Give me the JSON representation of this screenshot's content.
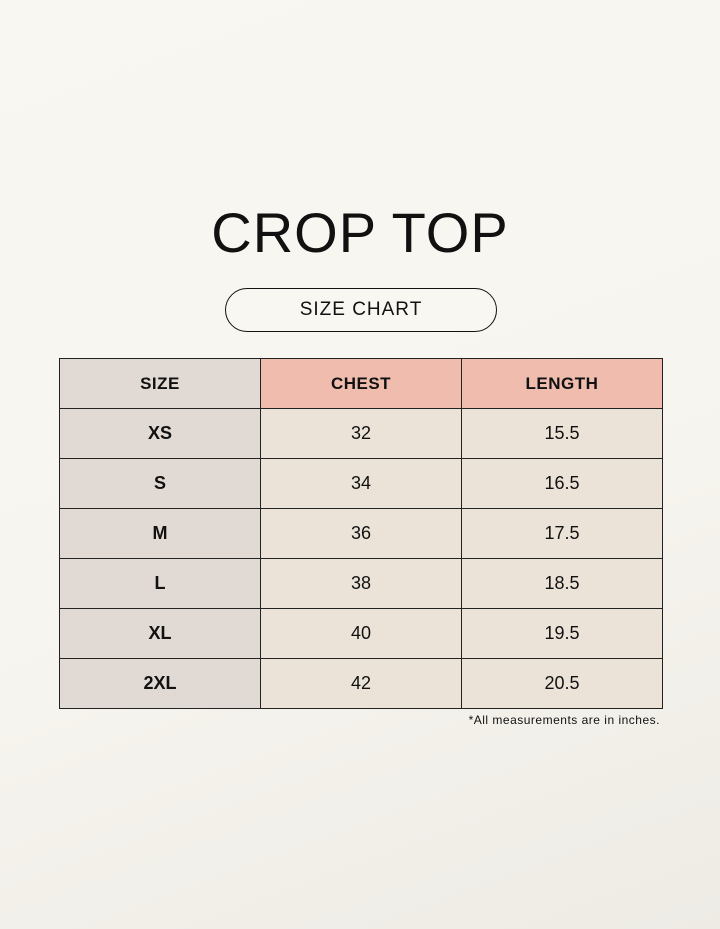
{
  "title": "CROP TOP",
  "subtitle": "SIZE CHART",
  "table": {
    "headers": [
      "SIZE",
      "CHEST",
      "LENGTH"
    ],
    "rows": [
      [
        "XS",
        "32",
        "15.5"
      ],
      [
        "S",
        "34",
        "16.5"
      ],
      [
        "M",
        "36",
        "17.5"
      ],
      [
        "L",
        "38",
        "18.5"
      ],
      [
        "XL",
        "40",
        "19.5"
      ],
      [
        "2XL",
        "42",
        "20.5"
      ]
    ]
  },
  "note": "*All measurements are in inches.",
  "colors": {
    "size_column": "#e0d9d4",
    "header_accent": "#efbcae",
    "cell": "#ebe3d8",
    "background": "#f8f6f0"
  }
}
